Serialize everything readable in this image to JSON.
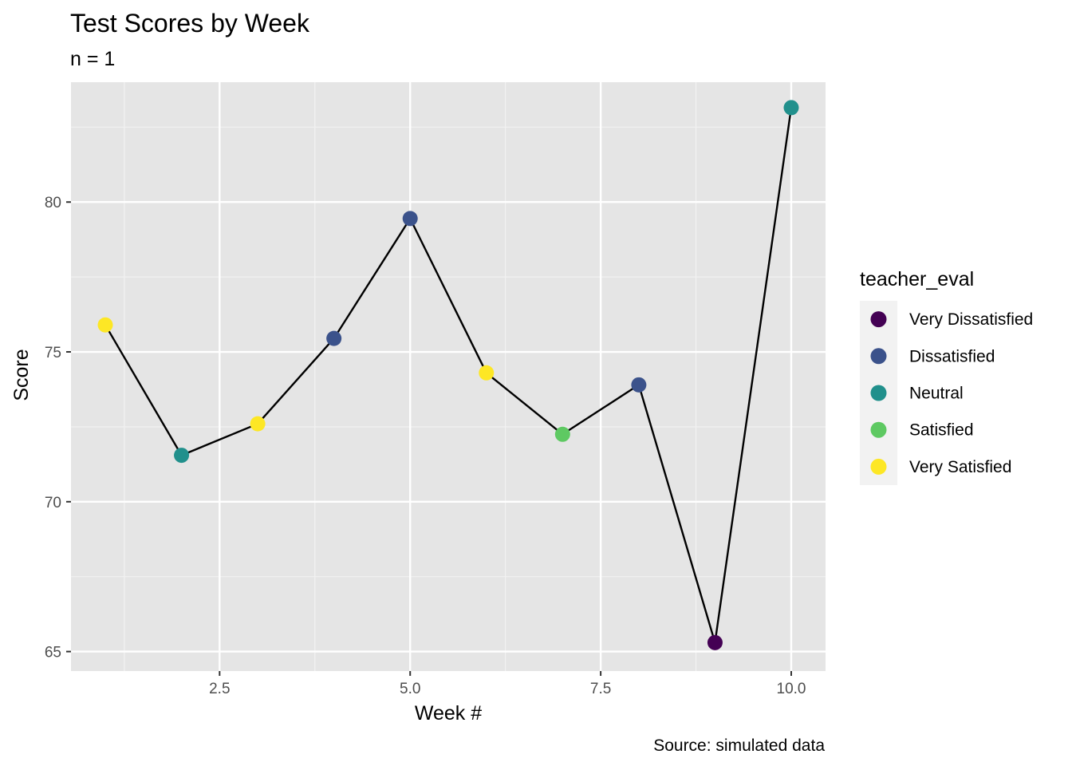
{
  "chart_data": {
    "type": "line",
    "title": "Test Scores by Week",
    "subtitle": "n = 1",
    "caption": "Source: simulated data",
    "xlabel": "Week #",
    "ylabel": "Score",
    "xlim": [
      0.55,
      10.45
    ],
    "ylim": [
      64.35,
      84.0
    ],
    "x_ticks": [
      2.5,
      5.0,
      7.5,
      10.0
    ],
    "x_tick_labels": [
      "2.5",
      "5.0",
      "7.5",
      "10.0"
    ],
    "x_minor_ticks": [
      1.25,
      3.75,
      6.25,
      8.75
    ],
    "y_ticks": [
      65,
      70,
      75,
      80
    ],
    "y_tick_labels": [
      "65",
      "70",
      "75",
      "80"
    ],
    "y_minor_ticks": [
      67.5,
      72.5,
      77.5,
      82.5
    ],
    "grid": true,
    "line_color": "#000000",
    "panel_background": "#e5e5e5",
    "legend": {
      "title": "teacher_eval",
      "placement": "right",
      "entries": [
        {
          "label": "Very Dissatisfied",
          "color": "#440154"
        },
        {
          "label": "Dissatisfied",
          "color": "#3b528b"
        },
        {
          "label": "Neutral",
          "color": "#21908c"
        },
        {
          "label": "Satisfied",
          "color": "#5ec962"
        },
        {
          "label": "Very Satisfied",
          "color": "#fde725"
        }
      ]
    },
    "points": [
      {
        "x": 1,
        "y": 75.9,
        "teacher_eval": "Very Satisfied"
      },
      {
        "x": 2,
        "y": 71.55,
        "teacher_eval": "Neutral"
      },
      {
        "x": 3,
        "y": 72.6,
        "teacher_eval": "Very Satisfied"
      },
      {
        "x": 4,
        "y": 75.45,
        "teacher_eval": "Dissatisfied"
      },
      {
        "x": 5,
        "y": 79.45,
        "teacher_eval": "Dissatisfied"
      },
      {
        "x": 6,
        "y": 74.3,
        "teacher_eval": "Very Satisfied"
      },
      {
        "x": 7,
        "y": 72.25,
        "teacher_eval": "Satisfied"
      },
      {
        "x": 8,
        "y": 73.9,
        "teacher_eval": "Dissatisfied"
      },
      {
        "x": 9,
        "y": 65.3,
        "teacher_eval": "Very Dissatisfied"
      },
      {
        "x": 10,
        "y": 83.15,
        "teacher_eval": "Neutral"
      }
    ]
  }
}
